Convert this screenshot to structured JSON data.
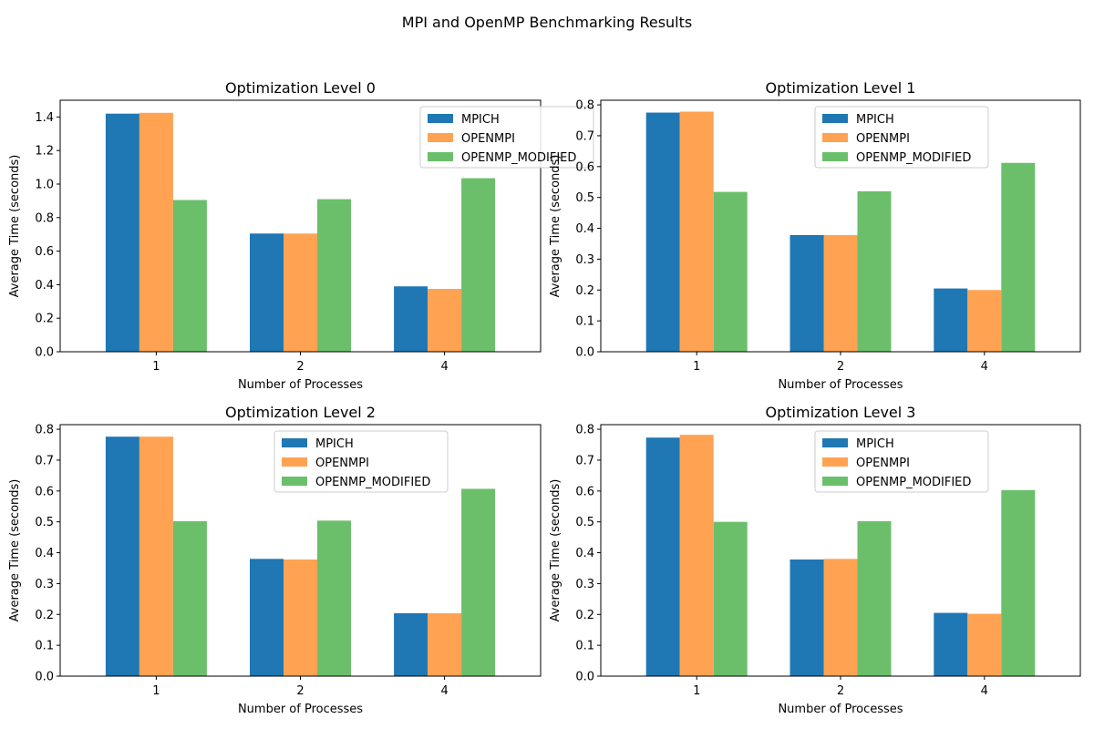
{
  "figure": {
    "title": "MPI and OpenMP Benchmarking Results"
  },
  "colors": {
    "MPICH": "#1f77b4",
    "OPENMPI": "#ffa352",
    "OPENMP_MODIFIED": "#6bbf6b"
  },
  "chart_data": [
    {
      "type": "bar",
      "title": "Optimization Level 0",
      "xlabel": "Number of Processes",
      "ylabel": "Average Time (seconds)",
      "categories": [
        "1",
        "2",
        "4"
      ],
      "ylim": [
        0,
        1.5
      ],
      "yticks": [
        "0.0",
        "0.2",
        "0.4",
        "0.6",
        "0.8",
        "1.0",
        "1.2",
        "1.4"
      ],
      "legend_position": "upper-right",
      "series": [
        {
          "name": "MPICH",
          "values": [
            1.42,
            0.705,
            0.39
          ]
        },
        {
          "name": "OPENMPI",
          "values": [
            1.425,
            0.705,
            0.375
          ]
        },
        {
          "name": "OPENMP_MODIFIED",
          "values": [
            0.905,
            0.91,
            1.035
          ]
        }
      ]
    },
    {
      "type": "bar",
      "title": "Optimization Level 1",
      "xlabel": "Number of Processes",
      "ylabel": "Average Time (seconds)",
      "categories": [
        "1",
        "2",
        "4"
      ],
      "ylim": [
        0,
        0.815
      ],
      "yticks": [
        "0.0",
        "0.1",
        "0.2",
        "0.3",
        "0.4",
        "0.5",
        "0.6",
        "0.7",
        "0.8"
      ],
      "legend_position": "upper-center",
      "series": [
        {
          "name": "MPICH",
          "values": [
            0.775,
            0.378,
            0.205
          ]
        },
        {
          "name": "OPENMPI",
          "values": [
            0.778,
            0.378,
            0.2
          ]
        },
        {
          "name": "OPENMP_MODIFIED",
          "values": [
            0.518,
            0.52,
            0.612
          ]
        }
      ]
    },
    {
      "type": "bar",
      "title": "Optimization Level 2",
      "xlabel": "Number of Processes",
      "ylabel": "Average Time (seconds)",
      "categories": [
        "1",
        "2",
        "4"
      ],
      "ylim": [
        0,
        0.815
      ],
      "yticks": [
        "0.0",
        "0.1",
        "0.2",
        "0.3",
        "0.4",
        "0.5",
        "0.6",
        "0.7",
        "0.8"
      ],
      "legend_position": "upper-center",
      "series": [
        {
          "name": "MPICH",
          "values": [
            0.776,
            0.38,
            0.204
          ]
        },
        {
          "name": "OPENMPI",
          "values": [
            0.776,
            0.378,
            0.204
          ]
        },
        {
          "name": "OPENMP_MODIFIED",
          "values": [
            0.502,
            0.504,
            0.607
          ]
        }
      ]
    },
    {
      "type": "bar",
      "title": "Optimization Level 3",
      "xlabel": "Number of Processes",
      "ylabel": "Average Time (seconds)",
      "categories": [
        "1",
        "2",
        "4"
      ],
      "ylim": [
        0,
        0.815
      ],
      "yticks": [
        "0.0",
        "0.1",
        "0.2",
        "0.3",
        "0.4",
        "0.5",
        "0.6",
        "0.7",
        "0.8"
      ],
      "legend_position": "upper-center",
      "series": [
        {
          "name": "MPICH",
          "values": [
            0.773,
            0.378,
            0.205
          ]
        },
        {
          "name": "OPENMPI",
          "values": [
            0.782,
            0.38,
            0.202
          ]
        },
        {
          "name": "OPENMP_MODIFIED",
          "values": [
            0.5,
            0.502,
            0.603
          ]
        }
      ]
    }
  ]
}
